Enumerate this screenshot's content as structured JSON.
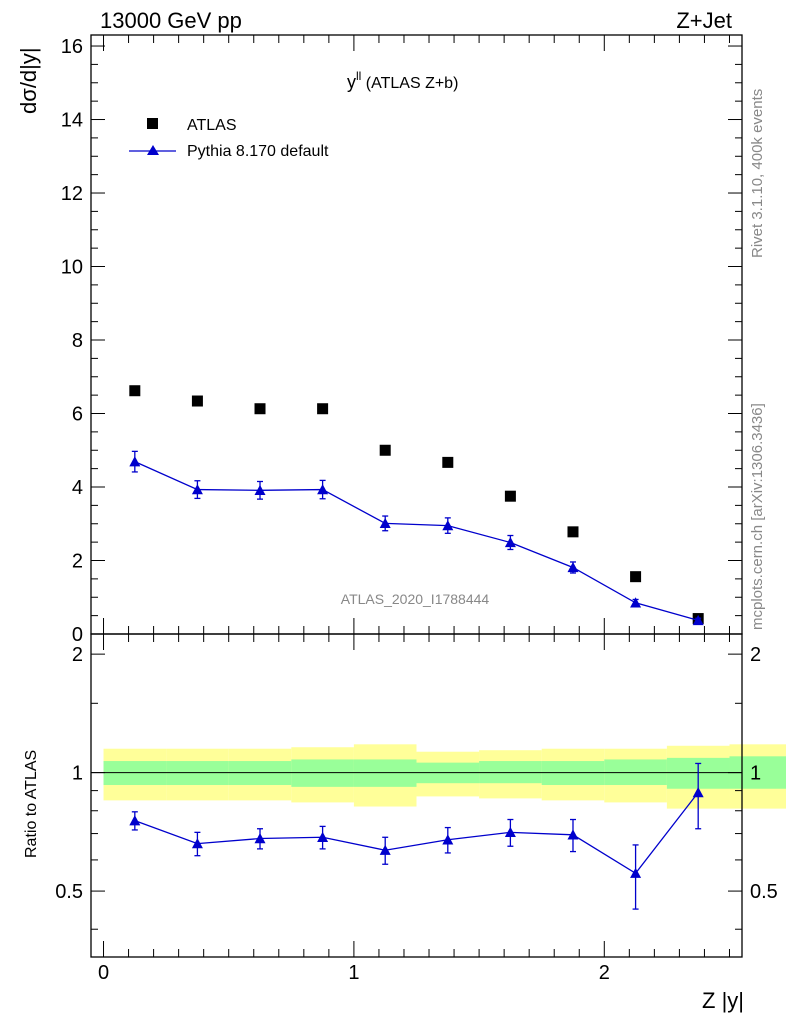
{
  "header": {
    "left_label": "13000 GeV pp",
    "right_label": "Z+Jet"
  },
  "side_labels": {
    "rivet": "Rivet 3.1.10,  400k events",
    "mcplots": "mcplots.cern.ch [arXiv:1306.3436]"
  },
  "chart_data": [
    {
      "type": "scatter",
      "title": "y",
      "title_superscript": "ll",
      "title_suffix": " (ATLAS Z+b)",
      "ylabel": "dσ/d|y|",
      "xlabel": "Z |y|",
      "analysis_id": "ATLAS_2020_I1788444",
      "xlim": [
        -0.05,
        2.55
      ],
      "ylim": [
        0,
        16.3
      ],
      "y_ticks": [
        0,
        2,
        4,
        6,
        8,
        10,
        12,
        14,
        16
      ],
      "y_tick_labels": [
        "0",
        "2",
        "4",
        "6",
        "8",
        "10",
        "12",
        "14",
        "16"
      ],
      "legend": {
        "position": "top-left"
      },
      "series": [
        {
          "name": "ATLAS",
          "marker": "square",
          "color": "#000000",
          "x": [
            0.125,
            0.375,
            0.625,
            0.875,
            1.125,
            1.375,
            1.625,
            1.875,
            2.125,
            2.375
          ],
          "values": [
            6.62,
            6.34,
            6.13,
            6.13,
            5.0,
            4.67,
            3.75,
            2.78,
            1.56,
            0.42
          ]
        },
        {
          "name": "Pythia 8.170 default",
          "marker": "triangle",
          "color": "#0000cc",
          "x": [
            0.125,
            0.375,
            0.625,
            0.875,
            1.125,
            1.375,
            1.625,
            1.875,
            2.125,
            2.375
          ],
          "values": [
            4.69,
            3.93,
            3.91,
            3.93,
            3.01,
            2.95,
            2.49,
            1.81,
            0.85,
            0.37
          ],
          "errors": [
            0.28,
            0.24,
            0.24,
            0.25,
            0.2,
            0.21,
            0.19,
            0.15,
            0.09,
            0.06
          ]
        }
      ]
    },
    {
      "type": "scatter",
      "ylabel": "Ratio to ATLAS",
      "xlabel": "Z |y|",
      "xlim": [
        -0.05,
        2.55
      ],
      "ylim": [
        0.34,
        2.25
      ],
      "x_ticks": [
        0,
        1,
        2
      ],
      "x_tick_labels": [
        "0",
        "1",
        "2"
      ],
      "y_ticks": [
        0.5,
        1,
        2
      ],
      "y_tick_labels": [
        "0.5",
        "1",
        "2"
      ],
      "bin_edges": [
        0.0,
        0.25,
        0.5,
        0.75,
        1.0,
        1.25,
        1.5,
        1.75,
        2.0,
        2.25,
        2.5
      ],
      "bands": {
        "inner_color": "#99ff99",
        "outer_color": "#ffff99",
        "inner": [
          [
            0.93,
            1.07
          ],
          [
            0.93,
            1.07
          ],
          [
            0.93,
            1.07
          ],
          [
            0.92,
            1.08
          ],
          [
            0.92,
            1.08
          ],
          [
            0.94,
            1.06
          ],
          [
            0.94,
            1.07
          ],
          [
            0.93,
            1.07
          ],
          [
            0.93,
            1.08
          ],
          [
            0.91,
            1.09
          ],
          [
            0.91,
            1.1
          ]
        ],
        "outer": [
          [
            0.85,
            1.15
          ],
          [
            0.85,
            1.15
          ],
          [
            0.85,
            1.15
          ],
          [
            0.84,
            1.16
          ],
          [
            0.82,
            1.18
          ],
          [
            0.87,
            1.13
          ],
          [
            0.86,
            1.14
          ],
          [
            0.85,
            1.15
          ],
          [
            0.84,
            1.15
          ],
          [
            0.81,
            1.17
          ],
          [
            0.81,
            1.18
          ]
        ]
      },
      "series": [
        {
          "name": "Pythia 8.170 default",
          "marker": "triangle",
          "color": "#0000cc",
          "x": [
            0.125,
            0.375,
            0.625,
            0.875,
            1.125,
            1.375,
            1.625,
            1.875,
            2.125,
            2.375
          ],
          "values": [
            0.755,
            0.66,
            0.68,
            0.685,
            0.635,
            0.675,
            0.705,
            0.695,
            0.555,
            0.89
          ],
          "err_low": [
            0.04,
            0.045,
            0.04,
            0.045,
            0.05,
            0.05,
            0.055,
            0.065,
            0.105,
            0.17
          ],
          "err_high": [
            0.04,
            0.045,
            0.04,
            0.045,
            0.05,
            0.05,
            0.055,
            0.065,
            0.1,
            0.165
          ]
        }
      ]
    }
  ]
}
